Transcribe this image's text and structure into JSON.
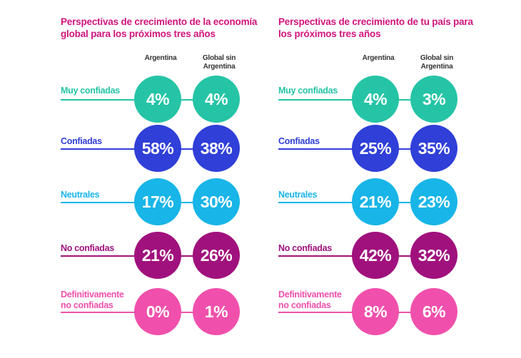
{
  "colors": {
    "title": "#d1147d",
    "muy_confiadas": "#25c4a6",
    "confiadas": "#2f3fd8",
    "neutrales": "#18b5e8",
    "no_confiadas": "#a0117d",
    "definitivamente_no_confiadas": "#f050ac"
  },
  "chart_data": [
    {
      "type": "table",
      "title": "Perspectivas de crecimiento de la economía global para los próximos tres años",
      "columns": [
        "Argentina",
        "Global sin Argentina"
      ],
      "categories": [
        "Muy confiadas",
        "Confiadas",
        "Neutrales",
        "No confiadas",
        "Definitivamente no confiadas"
      ],
      "series": [
        {
          "name": "Argentina",
          "values": [
            "4%",
            "58%",
            "17%",
            "21%",
            "0%"
          ]
        },
        {
          "name": "Global sin Argentina",
          "values": [
            "4%",
            "38%",
            "30%",
            "26%",
            "1%"
          ]
        }
      ]
    },
    {
      "type": "table",
      "title": "Perspectivas de crecimiento de tu país para los próximos tres años",
      "columns": [
        "Argentina",
        "Global sin Argentina"
      ],
      "categories": [
        "Muy confiadas",
        "Confiadas",
        "Neutrales",
        "No confiadas",
        "Definitivamente no confiadas"
      ],
      "series": [
        {
          "name": "Argentina",
          "values": [
            "4%",
            "25%",
            "21%",
            "42%",
            "8%"
          ]
        },
        {
          "name": "Global sin Argentina",
          "values": [
            "3%",
            "35%",
            "23%",
            "32%",
            "6%"
          ]
        }
      ]
    }
  ]
}
